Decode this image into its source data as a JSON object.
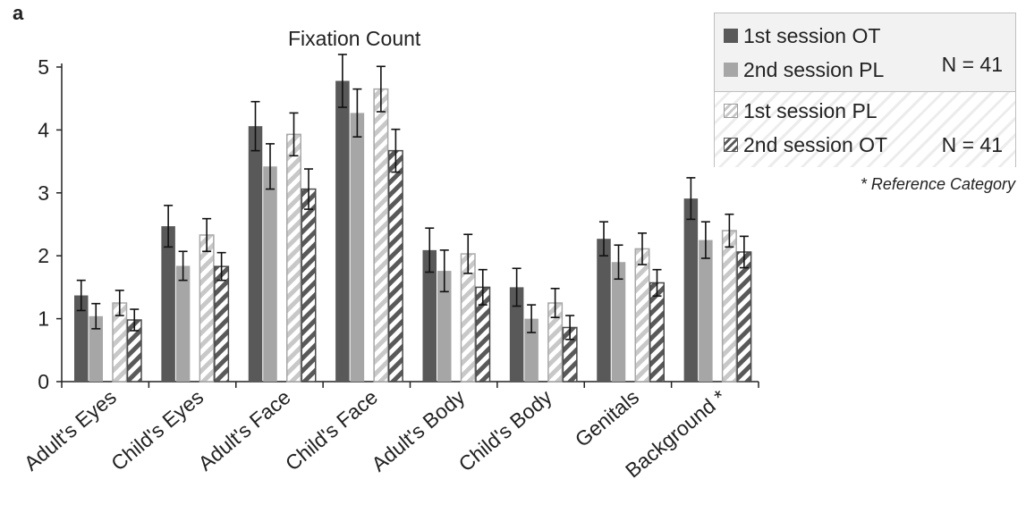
{
  "panel_label": "a",
  "chart_data": {
    "type": "bar",
    "title": "Fixation Count",
    "xlabel": "",
    "ylabel": "",
    "ylim": [
      0,
      5
    ],
    "yticks": [
      "0",
      "1",
      "2",
      "3",
      "4",
      "5"
    ],
    "grid": false,
    "legend_position": "top-right",
    "categories": [
      "Adult's Eyes",
      "Child's Eyes",
      "Adult's Face",
      "Child's Face",
      "Adult's Body",
      "Child's Body",
      "Genitals",
      "Background *"
    ],
    "series": [
      {
        "name": "1st session OT",
        "style": "solid-dark",
        "color": "#595959",
        "values": [
          1.37,
          2.47,
          4.06,
          4.78,
          2.09,
          1.5,
          2.27,
          2.91
        ],
        "errors": [
          0.24,
          0.33,
          0.39,
          0.42,
          0.35,
          0.3,
          0.27,
          0.33
        ]
      },
      {
        "name": "2nd session PL",
        "style": "solid-light",
        "color": "#a6a6a6",
        "values": [
          1.04,
          1.84,
          3.42,
          4.27,
          1.76,
          1.0,
          1.9,
          2.25
        ],
        "errors": [
          0.2,
          0.23,
          0.36,
          0.38,
          0.33,
          0.22,
          0.27,
          0.29
        ]
      },
      {
        "name": "1st session PL",
        "style": "hatched-light",
        "color": "#c8c8c8",
        "values": [
          1.25,
          2.33,
          3.93,
          4.65,
          2.03,
          1.25,
          2.11,
          2.4
        ],
        "errors": [
          0.2,
          0.26,
          0.34,
          0.36,
          0.31,
          0.23,
          0.25,
          0.26
        ]
      },
      {
        "name": "2nd session OT",
        "style": "hatched-dark",
        "color": "#595959",
        "values": [
          0.98,
          1.83,
          3.06,
          3.67,
          1.5,
          0.86,
          1.57,
          2.06
        ],
        "errors": [
          0.17,
          0.22,
          0.32,
          0.34,
          0.28,
          0.19,
          0.21,
          0.25
        ]
      }
    ]
  },
  "legend": {
    "group1_n": "N = 41",
    "group2_n": "N = 41"
  },
  "reference_note": "* Reference Category"
}
